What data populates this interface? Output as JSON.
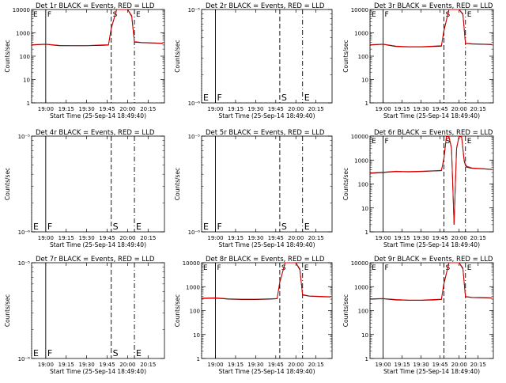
{
  "colors": {
    "events": "#000000",
    "lld": "#e00000",
    "background": "#ffffff"
  },
  "xlabel": "Start Time (25-Sep-14 18:49:40)",
  "ylabel": "Counts/sec",
  "x_tick_labels": [
    "19:00",
    "19:15",
    "19:30",
    "19:45",
    "20:00",
    "20:15"
  ],
  "chart_data": [
    {
      "title": "Det 1r BLACK = Events, RED = LLD",
      "type": "line",
      "empty": false,
      "ylim": [
        1,
        10000
      ],
      "ytick_labels": [
        "1",
        "10",
        "100",
        "1000",
        "10000"
      ],
      "log_y": true,
      "x_range": [
        "18:49:40",
        "20:27"
      ],
      "markers": [
        {
          "label": "E",
          "time": "18:49:40"
        },
        {
          "label": "F",
          "time": "19:00"
        },
        {
          "label": "S",
          "time": "19:48"
        },
        {
          "label": "E",
          "time": "20:05"
        }
      ],
      "series": [
        {
          "x": [
            "18:50",
            "19:00",
            "19:10",
            "19:20",
            "19:30",
            "19:40",
            "19:46",
            "19:48",
            "19:52",
            "20:00",
            "20:03",
            "20:05",
            "20:10",
            "20:20",
            "20:26"
          ],
          "y": [
            300,
            320,
            280,
            280,
            280,
            290,
            300,
            1500,
            10000,
            10000,
            5000,
            400,
            380,
            360,
            350
          ]
        },
        {
          "x": [
            "18:50",
            "19:00",
            "19:10",
            "19:20",
            "19:30",
            "19:40",
            "19:46",
            "19:48",
            "19:52",
            "20:00",
            "20:03",
            "20:05",
            "20:10",
            "20:20",
            "20:26"
          ],
          "y": [
            310,
            330,
            290,
            285,
            285,
            300,
            310,
            1600,
            10000,
            10000,
            5500,
            420,
            390,
            370,
            360
          ]
        }
      ]
    },
    {
      "title": "Det 2r BLACK = Events, RED = LLD",
      "type": "line",
      "empty": true,
      "ylim": [
        1e-06,
        1e-05
      ],
      "ytick_labels": [
        "10⁻⁶",
        "10⁻⁵"
      ],
      "log_y": true,
      "markers": [
        {
          "label": "E",
          "time": "18:49:40"
        },
        {
          "label": "F",
          "time": "19:00"
        },
        {
          "label": "S",
          "time": "19:48"
        },
        {
          "label": "E",
          "time": "20:05"
        }
      ],
      "series": []
    },
    {
      "title": "Det 3r BLACK = Events, RED = LLD",
      "type": "line",
      "empty": false,
      "ylim": [
        1,
        10000
      ],
      "ytick_labels": [
        "1",
        "10",
        "100",
        "1000",
        "10000"
      ],
      "log_y": true,
      "markers": [
        {
          "label": "E",
          "time": "18:49:40"
        },
        {
          "label": "F",
          "time": "19:00"
        },
        {
          "label": "S",
          "time": "19:48"
        },
        {
          "label": "E",
          "time": "20:05"
        }
      ],
      "series": [
        {
          "x": [
            "18:50",
            "19:00",
            "19:10",
            "19:20",
            "19:30",
            "19:40",
            "19:46",
            "19:48",
            "19:52",
            "20:00",
            "20:03",
            "20:05",
            "20:10",
            "20:20",
            "20:26"
          ],
          "y": [
            300,
            320,
            260,
            250,
            250,
            260,
            270,
            1200,
            10000,
            10000,
            6000,
            350,
            330,
            320,
            310
          ]
        },
        {
          "x": [
            "18:50",
            "19:00",
            "19:10",
            "19:20",
            "19:30",
            "19:40",
            "19:46",
            "19:48",
            "19:52",
            "20:00",
            "20:03",
            "20:05",
            "20:10",
            "20:20",
            "20:26"
          ],
          "y": [
            310,
            330,
            270,
            255,
            255,
            270,
            280,
            1300,
            10000,
            10000,
            6500,
            360,
            340,
            330,
            320
          ]
        }
      ]
    },
    {
      "title": "Det 4r BLACK = Events, RED = LLD",
      "type": "line",
      "empty": true,
      "ylim": [
        1e-06,
        1e-05
      ],
      "ytick_labels": [
        "10⁻⁶",
        "10⁻⁵"
      ],
      "log_y": true,
      "markers": [
        {
          "label": "E",
          "time": "18:49:40"
        },
        {
          "label": "F",
          "time": "19:00"
        },
        {
          "label": "S",
          "time": "19:48"
        },
        {
          "label": "E",
          "time": "20:05"
        }
      ],
      "series": []
    },
    {
      "title": "Det 5r BLACK = Events, RED = LLD",
      "type": "line",
      "empty": true,
      "ylim": [
        1e-06,
        1e-05
      ],
      "ytick_labels": [
        "10⁻⁶",
        "10⁻⁵"
      ],
      "log_y": true,
      "markers": [
        {
          "label": "E",
          "time": "18:49:40"
        },
        {
          "label": "F",
          "time": "19:00"
        },
        {
          "label": "S",
          "time": "19:48"
        },
        {
          "label": "E",
          "time": "20:05"
        }
      ],
      "series": []
    },
    {
      "title": "Det 6r BLACK = Events, RED = LLD",
      "type": "line",
      "empty": false,
      "ylim": [
        1,
        10000
      ],
      "ytick_labels": [
        "1",
        "10",
        "100",
        "1000",
        "10000"
      ],
      "log_y": true,
      "markers": [
        {
          "label": "E",
          "time": "18:49:40"
        },
        {
          "label": "F",
          "time": "19:00"
        },
        {
          "label": "S",
          "time": "19:48"
        },
        {
          "label": "E",
          "time": "20:05"
        }
      ],
      "series": [
        {
          "x": [
            "18:50",
            "19:00",
            "19:10",
            "19:20",
            "19:30",
            "19:40",
            "19:46",
            "19:48",
            "19:50",
            "19:52",
            "19:54",
            "19:56",
            "19:58",
            "20:00",
            "20:02",
            "20:04",
            "20:05",
            "20:06",
            "20:10",
            "20:20",
            "20:26"
          ],
          "y": [
            280,
            300,
            330,
            320,
            330,
            350,
            360,
            1100,
            10000,
            9000,
            3000,
            2,
            3000,
            10000,
            9000,
            900,
            600,
            500,
            450,
            420,
            400
          ]
        },
        {
          "x": [
            "18:50",
            "19:00",
            "19:10",
            "19:20",
            "19:30",
            "19:40",
            "19:46",
            "19:48",
            "19:50",
            "19:52",
            "19:54",
            "19:56",
            "19:58",
            "20:00",
            "20:02",
            "20:04",
            "20:05",
            "20:06",
            "20:10",
            "20:20",
            "20:26"
          ],
          "y": [
            290,
            310,
            340,
            330,
            340,
            360,
            370,
            1200,
            10000,
            9500,
            3200,
            2,
            3200,
            10000,
            9500,
            1000,
            650,
            550,
            470,
            430,
            410
          ]
        }
      ]
    },
    {
      "title": "Det 7r BLACK = Events, RED = LLD",
      "type": "line",
      "empty": true,
      "ylim": [
        1e-06,
        1e-05
      ],
      "ytick_labels": [
        "10⁻⁶",
        "10⁻⁵"
      ],
      "log_y": true,
      "markers": [
        {
          "label": "E",
          "time": "18:49:40"
        },
        {
          "label": "F",
          "time": "19:00"
        },
        {
          "label": "S",
          "time": "19:48"
        },
        {
          "label": "E",
          "time": "20:05"
        }
      ],
      "series": []
    },
    {
      "title": "Det 8r BLACK = Events, RED = LLD",
      "type": "line",
      "empty": false,
      "ylim": [
        1,
        10000
      ],
      "ytick_labels": [
        "1",
        "10",
        "100",
        "1000",
        "10000"
      ],
      "log_y": true,
      "markers": [
        {
          "label": "E",
          "time": "18:49:40"
        },
        {
          "label": "F",
          "time": "19:00"
        },
        {
          "label": "S",
          "time": "19:48"
        },
        {
          "label": "E",
          "time": "20:05"
        }
      ],
      "series": [
        {
          "x": [
            "18:50",
            "19:00",
            "19:10",
            "19:20",
            "19:30",
            "19:40",
            "19:46",
            "19:48",
            "19:52",
            "20:00",
            "20:03",
            "20:05",
            "20:10",
            "20:20",
            "20:26"
          ],
          "y": [
            320,
            330,
            300,
            290,
            290,
            300,
            310,
            1500,
            10000,
            10000,
            5000,
            450,
            400,
            380,
            370
          ]
        },
        {
          "x": [
            "18:50",
            "19:00",
            "19:10",
            "19:20",
            "19:30",
            "19:40",
            "19:46",
            "19:48",
            "19:52",
            "20:00",
            "20:03",
            "20:05",
            "20:10",
            "20:20",
            "20:26"
          ],
          "y": [
            330,
            340,
            310,
            300,
            300,
            310,
            320,
            1600,
            10000,
            10000,
            5500,
            470,
            410,
            390,
            380
          ]
        }
      ]
    },
    {
      "title": "Det 9r BLACK = Events, RED = LLD",
      "type": "line",
      "empty": false,
      "ylim": [
        1,
        10000
      ],
      "ytick_labels": [
        "1",
        "10",
        "100",
        "1000",
        "10000"
      ],
      "log_y": true,
      "markers": [
        {
          "label": "E",
          "time": "18:49:40"
        },
        {
          "label": "F",
          "time": "19:00"
        },
        {
          "label": "S",
          "time": "19:48"
        },
        {
          "label": "E",
          "time": "20:05"
        }
      ],
      "series": [
        {
          "x": [
            "18:50",
            "19:00",
            "19:10",
            "19:20",
            "19:30",
            "19:40",
            "19:46",
            "19:48",
            "19:52",
            "20:00",
            "20:03",
            "20:05",
            "20:10",
            "20:20",
            "20:26"
          ],
          "y": [
            300,
            310,
            280,
            270,
            270,
            280,
            290,
            1300,
            10000,
            10000,
            5500,
            380,
            350,
            340,
            330
          ]
        },
        {
          "x": [
            "18:50",
            "19:00",
            "19:10",
            "19:20",
            "19:30",
            "19:40",
            "19:46",
            "19:48",
            "19:52",
            "20:00",
            "20:03",
            "20:05",
            "20:10",
            "20:20",
            "20:26"
          ],
          "y": [
            310,
            320,
            290,
            275,
            275,
            290,
            300,
            1400,
            10000,
            10000,
            6000,
            390,
            360,
            350,
            340
          ]
        }
      ]
    }
  ]
}
